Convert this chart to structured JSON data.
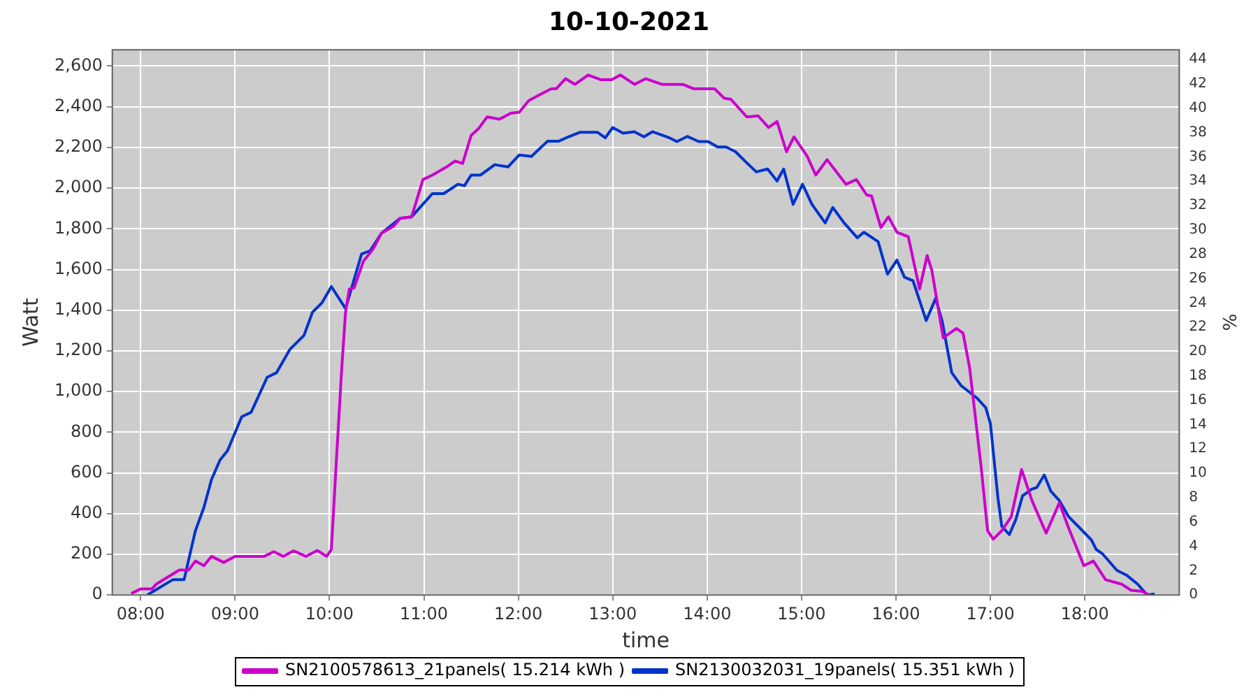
{
  "chart_data": {
    "type": "line",
    "title": "10-10-2021",
    "xlabel": "time",
    "ylabel": "Watt",
    "y2label": "%",
    "xlim": [
      7.7,
      19.0
    ],
    "xticks": [
      {
        "value": 8,
        "label": "08:00"
      },
      {
        "value": 9,
        "label": "09:00"
      },
      {
        "value": 10,
        "label": "10:00"
      },
      {
        "value": 11,
        "label": "11:00"
      },
      {
        "value": 12,
        "label": "12:00"
      },
      {
        "value": 13,
        "label": "13:00"
      },
      {
        "value": 14,
        "label": "14:00"
      },
      {
        "value": 15,
        "label": "15:00"
      },
      {
        "value": 16,
        "label": "16:00"
      },
      {
        "value": 17,
        "label": "17:00"
      },
      {
        "value": 18,
        "label": "18:00"
      }
    ],
    "ylim": [
      0,
      2680
    ],
    "yticks": [
      0,
      200,
      400,
      600,
      800,
      {
        "value": 1000,
        "label": "1,000"
      },
      {
        "value": 1200,
        "label": "1,200"
      },
      {
        "value": 1400,
        "label": "1,400"
      },
      {
        "value": 1600,
        "label": "1,600"
      },
      {
        "value": 1800,
        "label": "1,800"
      },
      {
        "value": 2000,
        "label": "2,000"
      },
      {
        "value": 2200,
        "label": "2,200"
      },
      {
        "value": 2400,
        "label": "2,400"
      },
      {
        "value": 2600,
        "label": "2,600"
      }
    ],
    "y2lim": [
      0,
      44.8
    ],
    "y2ticks": [
      0,
      2,
      4,
      6,
      8,
      10,
      12,
      14,
      16,
      18,
      20,
      22,
      24,
      26,
      28,
      30,
      32,
      34,
      36,
      38,
      40,
      42,
      44
    ],
    "grid": true,
    "legend": "bottom",
    "line_style": "solid",
    "series": [
      {
        "name": "SN2100578613_21panels( 15.214 kWh )",
        "color": "#cc00cc",
        "x": [
          7.9,
          8.0,
          8.12,
          8.17,
          8.41,
          8.51,
          8.58,
          8.67,
          8.75,
          8.88,
          9.0,
          9.31,
          9.41,
          9.51,
          9.62,
          9.75,
          9.87,
          9.97,
          10.02,
          10.07,
          10.13,
          10.17,
          10.21,
          10.26,
          10.36,
          10.46,
          10.55,
          10.68,
          10.75,
          10.87,
          10.99,
          11.09,
          11.24,
          11.33,
          11.41,
          11.5,
          11.58,
          11.67,
          11.8,
          11.92,
          12.01,
          12.11,
          12.23,
          12.35,
          12.4,
          12.5,
          12.6,
          12.74,
          12.87,
          12.99,
          13.08,
          13.23,
          13.35,
          13.52,
          13.74,
          13.86,
          14.08,
          14.18,
          14.25,
          14.42,
          14.54,
          14.65,
          14.74,
          14.84,
          14.92,
          15.06,
          15.15,
          15.27,
          15.47,
          15.58,
          15.69,
          15.74,
          15.84,
          15.92,
          16.01,
          16.13,
          16.25,
          16.33,
          16.38,
          16.5,
          16.64,
          16.71,
          16.78,
          16.9,
          16.97,
          17.03,
          17.12,
          17.22,
          17.33,
          17.44,
          17.59,
          17.73,
          17.83,
          17.99,
          18.09,
          18.22,
          18.39,
          18.49,
          18.61,
          18.68
        ],
        "values": [
          7,
          30,
          30,
          55,
          123,
          123,
          167,
          144,
          190,
          160,
          190,
          190,
          213,
          190,
          217,
          190,
          219,
          190,
          224,
          636,
          1116,
          1390,
          1504,
          1509,
          1641,
          1699,
          1778,
          1813,
          1852,
          1859,
          2042,
          2064,
          2104,
          2133,
          2121,
          2259,
          2293,
          2350,
          2339,
          2368,
          2373,
          2430,
          2460,
          2488,
          2488,
          2538,
          2510,
          2556,
          2533,
          2533,
          2556,
          2510,
          2538,
          2510,
          2510,
          2488,
          2488,
          2442,
          2437,
          2350,
          2355,
          2298,
          2327,
          2179,
          2252,
          2156,
          2064,
          2140,
          2019,
          2042,
          1966,
          1962,
          1806,
          1859,
          1783,
          1761,
          1504,
          1669,
          1595,
          1264,
          1310,
          1287,
          1116,
          636,
          316,
          274,
          316,
          384,
          617,
          464,
          304,
          453,
          327,
          144,
          167,
          75,
          53,
          23,
          18,
          0
        ]
      },
      {
        "name": "SN2130032031_19panels( 15.351 kWh )",
        "color": "#0033cc",
        "x": [
          8.07,
          8.34,
          8.46,
          8.58,
          8.67,
          8.75,
          8.84,
          8.92,
          9.07,
          9.17,
          9.34,
          9.44,
          9.58,
          9.73,
          9.82,
          9.92,
          10.02,
          10.17,
          10.26,
          10.34,
          10.43,
          10.55,
          10.75,
          10.87,
          11.09,
          11.21,
          11.36,
          11.43,
          11.5,
          11.6,
          11.75,
          11.89,
          12.01,
          12.14,
          12.31,
          12.43,
          12.53,
          12.65,
          12.84,
          12.92,
          13.0,
          13.11,
          13.23,
          13.33,
          13.42,
          13.6,
          13.68,
          13.79,
          13.91,
          14.01,
          14.11,
          14.2,
          14.3,
          14.4,
          14.52,
          14.64,
          14.74,
          14.81,
          14.91,
          15.01,
          15.11,
          15.25,
          15.33,
          15.45,
          15.59,
          15.66,
          15.81,
          15.91,
          16.01,
          16.09,
          16.18,
          16.32,
          16.42,
          16.49,
          16.59,
          16.69,
          16.86,
          16.95,
          17.0,
          17.08,
          17.12,
          17.2,
          17.27,
          17.34,
          17.44,
          17.49,
          17.57,
          17.64,
          17.73,
          17.83,
          18.0,
          18.07,
          18.12,
          18.19,
          18.34,
          18.44,
          18.56,
          18.66,
          18.74
        ],
        "values": [
          0,
          75,
          75,
          316,
          430,
          567,
          663,
          709,
          876,
          898,
          1070,
          1093,
          1207,
          1276,
          1390,
          1436,
          1516,
          1408,
          1550,
          1676,
          1692,
          1778,
          1852,
          1859,
          1973,
          1973,
          2019,
          2012,
          2064,
          2064,
          2115,
          2104,
          2163,
          2156,
          2231,
          2231,
          2252,
          2274,
          2274,
          2247,
          2298,
          2270,
          2277,
          2252,
          2277,
          2247,
          2229,
          2254,
          2229,
          2229,
          2202,
          2202,
          2179,
          2133,
          2080,
          2094,
          2035,
          2094,
          1920,
          2019,
          1920,
          1829,
          1905,
          1829,
          1756,
          1783,
          1737,
          1577,
          1646,
          1562,
          1545,
          1349,
          1458,
          1344,
          1093,
          1029,
          967,
          921,
          842,
          475,
          338,
          297,
          372,
          487,
          521,
          528,
          590,
          510,
          464,
          384,
          304,
          270,
          224,
          201,
          121,
          98,
          53,
          0,
          5
        ]
      }
    ]
  }
}
